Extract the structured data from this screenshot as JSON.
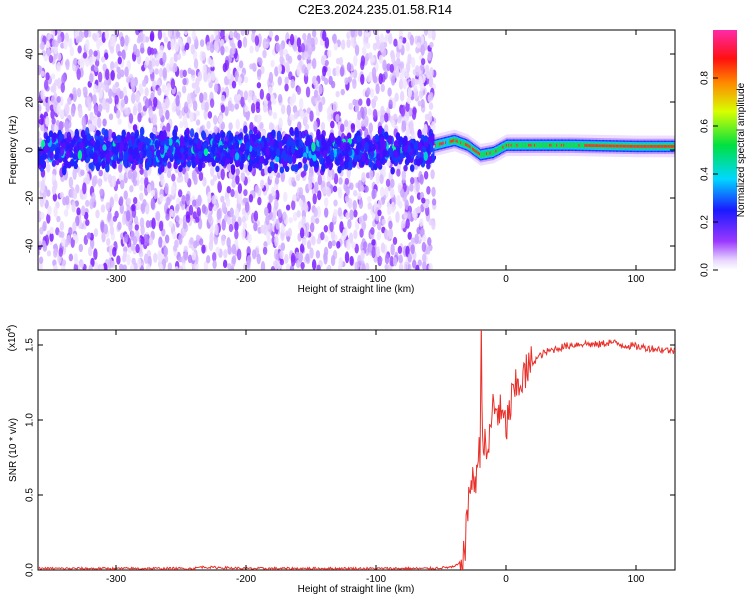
{
  "title": "C2E3.2024.235.01.58.R14",
  "chart_data": [
    {
      "type": "heatmap",
      "xlabel": "Height of straight line (km)",
      "ylabel": "Frequency (Hz)",
      "xlim": [
        -360,
        130
      ],
      "ylim": [
        -50,
        50
      ],
      "xticks": [
        -300,
        -200,
        -100,
        0,
        100
      ],
      "yticks": [
        -40,
        -20,
        0,
        20,
        40
      ],
      "colorbar": {
        "label": "Normalized spectral amplitude",
        "range": [
          0,
          1
        ],
        "ticks": [
          "0.0",
          "0.2",
          "0.4",
          "0.6",
          "0.8"
        ],
        "colormap": "rainbow (white→violet→blue→cyan→green→yellow→red→magenta)"
      },
      "features": {
        "noise_region_x": [
          -360,
          -55
        ],
        "signal_track": [
          {
            "x": -55,
            "y": 2
          },
          {
            "x": -40,
            "y": 4
          },
          {
            "x": -30,
            "y": 2
          },
          {
            "x": -20,
            "y": -2
          },
          {
            "x": -10,
            "y": -1
          },
          {
            "x": 0,
            "y": 2
          },
          {
            "x": 50,
            "y": 2
          },
          {
            "x": 100,
            "y": 1.5
          },
          {
            "x": 130,
            "y": 1.5
          }
        ]
      }
    },
    {
      "type": "line",
      "xlabel": "Height of straight line (km)",
      "ylabel": "SNR (10 * v/v)",
      "yscale_note": "(x10",
      "yscale_exp": "4",
      "xlim": [
        -360,
        130
      ],
      "ylim": [
        0,
        1.6
      ],
      "xticks": [
        -300,
        -200,
        -100,
        0,
        100
      ],
      "yticks": [
        "0.0",
        "0.5",
        "1.0",
        "1.5"
      ],
      "series": [
        {
          "color": "#e8302a",
          "x": [
            -360,
            -300,
            -250,
            -240,
            -235,
            -200,
            -150,
            -100,
            -60,
            -40,
            -35,
            -32,
            -30,
            -28,
            -25,
            -22,
            -20,
            -19,
            -18,
            -15,
            -12,
            -10,
            -5,
            0,
            5,
            10,
            15,
            20,
            25,
            30,
            40,
            50,
            60,
            70,
            80,
            90,
            100,
            110,
            120,
            130
          ],
          "y": [
            0.01,
            0.01,
            0.01,
            0.01,
            0.02,
            0.01,
            0.01,
            0.01,
            0.01,
            0.02,
            0.05,
            0.1,
            0.3,
            0.6,
            0.55,
            0.7,
            0.8,
            1.6,
            0.9,
            0.75,
            0.9,
            1.1,
            1.05,
            0.95,
            1.15,
            1.25,
            1.3,
            1.38,
            1.42,
            1.45,
            1.48,
            1.5,
            1.51,
            1.5,
            1.52,
            1.5,
            1.49,
            1.48,
            1.47,
            1.46
          ]
        }
      ]
    }
  ]
}
